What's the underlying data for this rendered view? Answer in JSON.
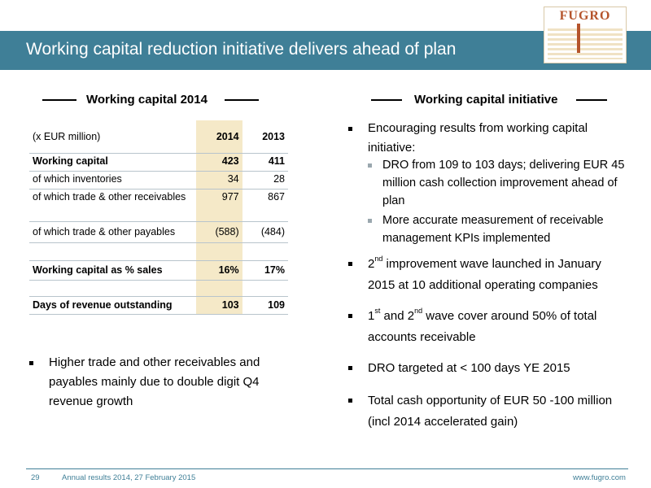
{
  "header": {
    "title": "Working capital reduction initiative delivers ahead of plan",
    "logo_text": "FUGRO"
  },
  "left": {
    "heading": "Working capital 2014",
    "table": {
      "unit_label": "(x EUR million)",
      "col_2014": "2014",
      "col_2013": "2013",
      "rows": [
        {
          "label": "Working capital",
          "v2014": "423",
          "v2013": "411"
        },
        {
          "label": "of which inventories",
          "v2014": "34",
          "v2013": "28"
        },
        {
          "label": "of which trade & other receivables",
          "v2014": "977",
          "v2013": "867"
        },
        {
          "label": "of which trade & other payables",
          "v2014": "(588)",
          "v2013": "(484)"
        },
        {
          "label": "Working capital as % sales",
          "v2014": "16%",
          "v2013": "17%"
        },
        {
          "label": "Days of revenue outstanding",
          "v2014": "103",
          "v2013": "109"
        }
      ]
    },
    "bullet": "Higher trade and other receivables and payables mainly due to double digit Q4 revenue growth"
  },
  "right": {
    "heading": "Working capital initiative",
    "b1": "Encouraging results from working capital initiative:",
    "s1": "DRO from 109 to 103 days; delivering EUR 45 million cash collection improvement ahead of plan",
    "s2": "More accurate measurement of receivable management KPIs implemented",
    "b2_num": "2",
    "b2_sup": "nd",
    "b2_text": " improvement wave launched in January 2015 at 10 additional operating companies",
    "b3_num1": "1",
    "b3_sup1": "st",
    "b3_mid": " and 2",
    "b3_sup2": "nd",
    "b3_text": " wave cover around 50% of total accounts receivable",
    "b4": "DRO targeted at < 100 days YE 2015",
    "b5": "Total cash opportunity of EUR 50 -100 million (incl 2014 accelerated gain)"
  },
  "footer": {
    "page": "29",
    "event": "Annual results 2014, 27 February 2015",
    "url": "www.fugro.com"
  },
  "colors": {
    "title_bar": "#3f7f97",
    "highlight": "#f5e9c8",
    "logo": "#b5542c"
  }
}
